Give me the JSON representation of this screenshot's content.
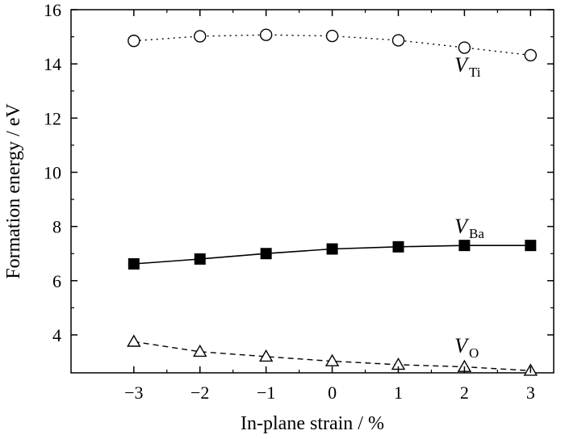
{
  "chart_data": {
    "type": "line",
    "title": "",
    "xlabel": "In-plane strain / %",
    "ylabel": "Formation energy / eV",
    "x": [
      -3,
      -2,
      -1,
      0,
      1,
      2,
      3
    ],
    "x_tick_labels": [
      "−3",
      "−2",
      "−1",
      "0",
      "1",
      "2",
      "3"
    ],
    "y_ticks": [
      4,
      6,
      8,
      10,
      12,
      14,
      16
    ],
    "y_tick_labels": [
      "4",
      "6",
      "8",
      "10",
      "12",
      "14",
      "16"
    ],
    "xlim": [
      -3.95,
      3.35
    ],
    "ylim": [
      2.6,
      16
    ],
    "grid": false,
    "series": [
      {
        "name": "V",
        "subscript": "Ti",
        "marker": "circle-open",
        "line": "dotted",
        "values": [
          14.85,
          15.02,
          15.07,
          15.03,
          14.87,
          14.6,
          14.32
        ]
      },
      {
        "name": "V",
        "subscript": "Ba",
        "marker": "square-filled",
        "line": "solid",
        "values": [
          6.62,
          6.8,
          7.0,
          7.17,
          7.25,
          7.3,
          7.3
        ]
      },
      {
        "name": "V",
        "subscript": "O",
        "marker": "triangle-open",
        "line": "dashed",
        "values": [
          3.75,
          3.38,
          3.2,
          3.03,
          2.9,
          2.82,
          2.68
        ]
      }
    ]
  }
}
